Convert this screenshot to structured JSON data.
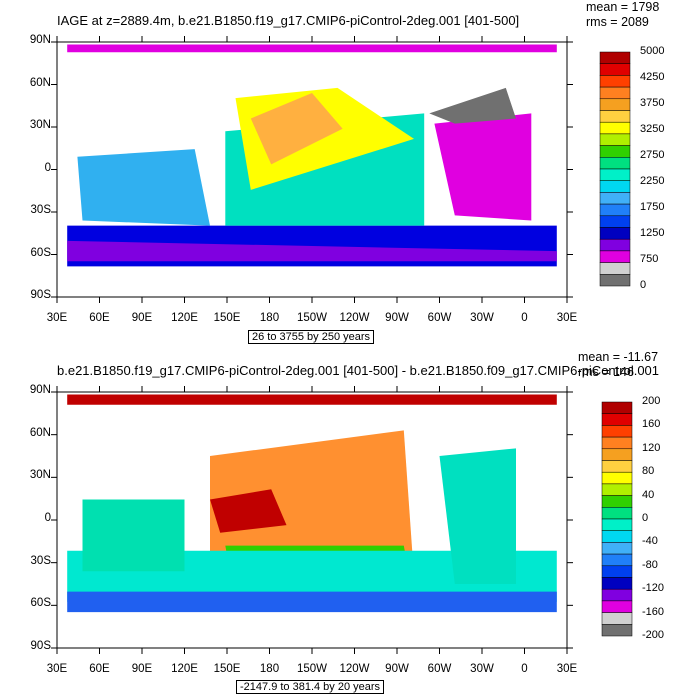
{
  "panels": [
    {
      "title": "IAGE at z=2889.4m, b.e21.B1850.f19_g17.CMIP6-piControl-2deg.001 [401-500]",
      "stats": {
        "mean": "mean = 1798",
        "rms": "rms = 2089"
      },
      "lat_labels": [
        "90N",
        "60N",
        "30N",
        "0",
        "30S",
        "60S",
        "90S"
      ],
      "lon_labels": [
        "30E",
        "60E",
        "90E",
        "120E",
        "150E",
        "180",
        "150W",
        "120W",
        "90W",
        "60W",
        "30W",
        "0",
        "30E"
      ],
      "range_label": "26 to 3755 by 250 years",
      "colorbar": {
        "labels": [
          "5000",
          "4250",
          "3750",
          "3250",
          "2750",
          "2250",
          "1750",
          "1250",
          "750",
          "0"
        ],
        "colors": [
          "#b00000",
          "#e00000",
          "#ff4000",
          "#ff8020",
          "#f5a020",
          "#ffd040",
          "#ffff00",
          "#b0f000",
          "#30d000",
          "#00e080",
          "#00f0c8",
          "#00d8f0",
          "#40b0f8",
          "#2080f8",
          "#0040f0",
          "#0000c0",
          "#8000e0",
          "#e000e0",
          "#d0d0d0",
          "#707070"
        ]
      }
    },
    {
      "title": "b.e21.B1850.f19_g17.CMIP6-piControl-2deg.001 [401-500] - b.e21.B1850.f09_g17.CMIP6-piControl.001",
      "stats": {
        "mean": "mean = -11.67",
        "rms": "rms = 146"
      },
      "lat_labels": [
        "90N",
        "60N",
        "30N",
        "0",
        "30S",
        "60S",
        "90S"
      ],
      "lon_labels": [
        "30E",
        "60E",
        "90E",
        "120E",
        "150E",
        "180",
        "150W",
        "120W",
        "90W",
        "60W",
        "30W",
        "0",
        "30E"
      ],
      "range_label": "-2147.9 to 381.4 by 20 years",
      "colorbar": {
        "labels": [
          "200",
          "160",
          "120",
          "80",
          "40",
          "0",
          "-40",
          "-80",
          "-120",
          "-160",
          "-200"
        ],
        "colors": [
          "#b00000",
          "#e00000",
          "#ff4000",
          "#ff8020",
          "#f5a020",
          "#ffd040",
          "#ffff00",
          "#b0f000",
          "#30d000",
          "#00e080",
          "#00f0c8",
          "#00d8f0",
          "#40b0f8",
          "#2080f8",
          "#0040f0",
          "#0000c0",
          "#8000e0",
          "#e000e0",
          "#d0d0d0",
          "#707070"
        ]
      }
    }
  ]
}
